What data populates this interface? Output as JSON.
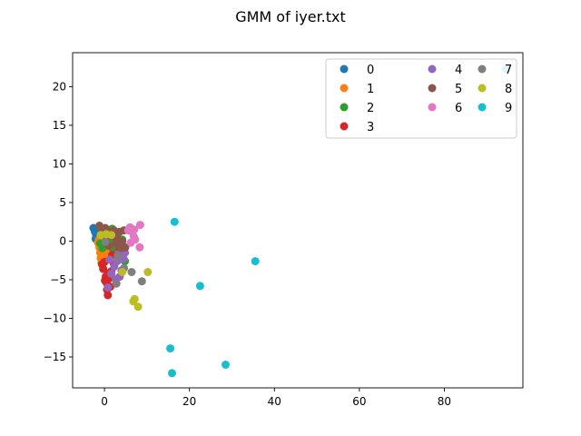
{
  "chart_data": {
    "type": "scatter",
    "title": "GMM of iyer.txt",
    "xlabel": "",
    "ylabel": "",
    "xlim": [
      -7.5,
      98.5
    ],
    "ylim": [
      -19.0,
      24.4
    ],
    "xticks": [
      0,
      20,
      40,
      60,
      80
    ],
    "yticks": [
      -15,
      -10,
      -5,
      0,
      5,
      10,
      15,
      20
    ],
    "grid": false,
    "legend": {
      "placement": "top-right",
      "columns": 3
    },
    "series": [
      {
        "name": "0",
        "color": "#1f77b4",
        "points": [
          [
            -2.6,
            1.7
          ],
          [
            -2.3,
            1.3
          ],
          [
            -2.0,
            0.9
          ],
          [
            -1.7,
            1.6
          ],
          [
            -1.4,
            1.1
          ],
          [
            -1.1,
            0.5
          ],
          [
            -0.8,
            1.4
          ],
          [
            -0.5,
            0.8
          ],
          [
            -2.1,
            0.3
          ],
          [
            -1.5,
            0.6
          ]
        ]
      },
      {
        "name": "1",
        "color": "#ff7f0e",
        "points": [
          [
            -1.5,
            -0.2
          ],
          [
            -1.2,
            -0.8
          ],
          [
            -1.0,
            -1.5
          ],
          [
            -0.9,
            -2.2
          ],
          [
            -0.7,
            -2.8
          ],
          [
            -0.5,
            -1.1
          ],
          [
            -0.3,
            -0.4
          ],
          [
            0.0,
            -1.9
          ],
          [
            0.3,
            -0.9
          ],
          [
            0.6,
            -1.4
          ],
          [
            -1.3,
            0.2
          ],
          [
            0.9,
            -0.3
          ]
        ]
      },
      {
        "name": "2",
        "color": "#2ca02c",
        "points": [
          [
            -1.0,
            -0.3
          ],
          [
            -0.5,
            -0.9
          ],
          [
            0.5,
            -0.2
          ],
          [
            1.5,
            0.4
          ],
          [
            2.0,
            -1.0
          ],
          [
            2.5,
            -1.7
          ],
          [
            3.0,
            0.9
          ],
          [
            1.8,
            1.6
          ],
          [
            3.5,
            -0.6
          ],
          [
            4.2,
            0.2
          ],
          [
            4.8,
            -2.6
          ],
          [
            0.2,
            0.6
          ]
        ]
      },
      {
        "name": "3",
        "color": "#d62728",
        "points": [
          [
            -0.6,
            -3.0
          ],
          [
            -0.3,
            -3.6
          ],
          [
            0.0,
            -2.7
          ],
          [
            0.3,
            -4.6
          ],
          [
            0.5,
            -5.4
          ],
          [
            0.6,
            -6.3
          ],
          [
            0.8,
            -7.0
          ],
          [
            1.2,
            -4.8
          ],
          [
            1.6,
            -3.9
          ],
          [
            2.2,
            -2.9
          ],
          [
            0.9,
            -4.2
          ],
          [
            1.4,
            -5.9
          ],
          [
            0.1,
            -5.1
          ],
          [
            1.8,
            -1.8
          ],
          [
            3.4,
            -1.3
          ]
        ]
      },
      {
        "name": "4",
        "color": "#9467bd",
        "points": [
          [
            0.8,
            -6.0
          ],
          [
            1.6,
            -4.2
          ],
          [
            2.3,
            -3.3
          ],
          [
            3.0,
            -2.6
          ],
          [
            3.6,
            -4.6
          ],
          [
            4.0,
            -3.8
          ],
          [
            4.5,
            -2.3
          ],
          [
            3.2,
            -1.7
          ],
          [
            2.6,
            -4.9
          ],
          [
            4.8,
            -1.5
          ],
          [
            1.2,
            -2.4
          ]
        ]
      },
      {
        "name": "5",
        "color": "#8c564b",
        "points": [
          [
            -1.2,
            2.0
          ],
          [
            -0.6,
            1.4
          ],
          [
            0.2,
            1.7
          ],
          [
            0.9,
            1.2
          ],
          [
            1.5,
            0.7
          ],
          [
            2.2,
            1.4
          ],
          [
            2.8,
            0.4
          ],
          [
            3.5,
            1.2
          ],
          [
            4.2,
            0.0
          ],
          [
            4.6,
            1.4
          ],
          [
            4.9,
            -0.8
          ],
          [
            3.9,
            -0.9
          ],
          [
            2.6,
            -0.3
          ],
          [
            1.0,
            -0.6
          ],
          [
            0.5,
            0.3
          ]
        ]
      },
      {
        "name": "6",
        "color": "#e377c2",
        "points": [
          [
            6.0,
            1.8
          ],
          [
            6.5,
            1.2
          ],
          [
            6.9,
            0.6
          ],
          [
            7.0,
            1.5
          ],
          [
            7.2,
            0.2
          ],
          [
            8.4,
            2.1
          ],
          [
            8.3,
            -0.8
          ],
          [
            5.6,
            1.4
          ],
          [
            6.2,
            -0.2
          ]
        ]
      },
      {
        "name": "7",
        "color": "#7f7f7f",
        "points": [
          [
            2.8,
            -5.5
          ],
          [
            4.6,
            -3.5
          ],
          [
            6.4,
            -4.0
          ],
          [
            8.8,
            -5.2
          ],
          [
            0.2,
            -0.1
          ],
          [
            3.1,
            -2.0
          ]
        ]
      },
      {
        "name": "8",
        "color": "#bcbd22",
        "points": [
          [
            -0.9,
            0.8
          ],
          [
            0.4,
            0.9
          ],
          [
            1.6,
            0.8
          ],
          [
            4.2,
            -4.0
          ],
          [
            6.8,
            -7.8
          ],
          [
            7.1,
            -7.5
          ],
          [
            7.9,
            -8.5
          ],
          [
            10.2,
            -4.0
          ]
        ]
      },
      {
        "name": "9",
        "color": "#17becf",
        "points": [
          [
            16.5,
            2.5
          ],
          [
            35.5,
            -2.6
          ],
          [
            22.5,
            -5.8
          ],
          [
            15.5,
            -13.9
          ],
          [
            15.9,
            -17.1
          ],
          [
            28.5,
            -16.0
          ],
          [
            94.5,
            22.3
          ]
        ]
      }
    ]
  }
}
